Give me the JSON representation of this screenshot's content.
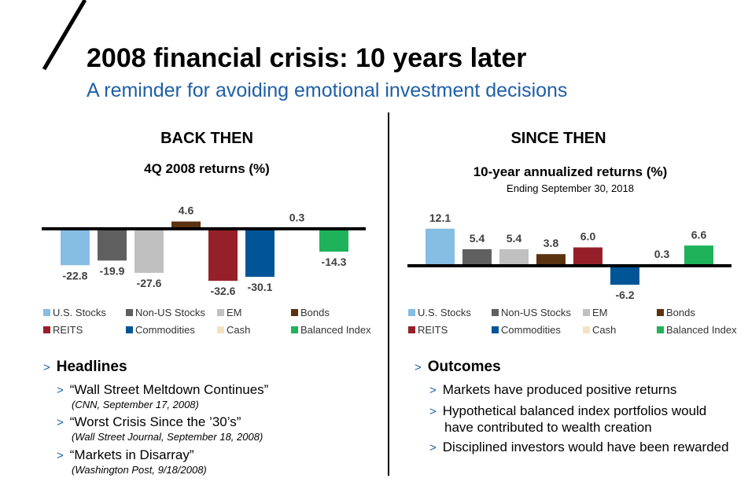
{
  "title": "2008 financial crisis: 10 years later",
  "subtitle": "A reminder for avoiding emotional investment decisions",
  "left": {
    "heading": "BACK THEN",
    "chart_title": "4Q 2008 returns (%)"
  },
  "right": {
    "heading": "SINCE THEN",
    "chart_title": "10-year annualized returns (%)",
    "chart_note": "Ending September 30, 2018"
  },
  "chart_data": [
    {
      "type": "bar",
      "title": "4Q 2008 returns (%)",
      "categories": [
        "U.S. Stocks",
        "Non-US Stocks",
        "EM",
        "Bonds",
        "REITS",
        "Commodities",
        "Cash",
        "Balanced Index"
      ],
      "values": [
        -22.8,
        -19.9,
        -27.6,
        4.6,
        -32.6,
        -30.1,
        0.3,
        -14.3
      ],
      "labels": [
        "-22.8",
        "-19.9",
        "-27.6",
        "4.6",
        "-32.6",
        "-30.1",
        "0.3",
        "-14.3"
      ],
      "legend": "bottom",
      "grid": false
    },
    {
      "type": "bar",
      "title": "10-year annualized returns (%)",
      "subtitle": "Ending September 30, 2018",
      "categories": [
        "U.S. Stocks",
        "Non-US Stocks",
        "EM",
        "Bonds",
        "REITS",
        "Commodities",
        "Cash",
        "Balanced Index"
      ],
      "values": [
        12.1,
        5.4,
        5.4,
        3.8,
        6.0,
        -6.2,
        0.3,
        6.6
      ],
      "labels": [
        "12.1",
        "5.4",
        "5.4",
        "3.8",
        "6.0",
        "-6.2",
        "0.3",
        "6.6"
      ],
      "legend": "bottom",
      "grid": false
    }
  ],
  "colors": [
    "#85bde3",
    "#606060",
    "#c0c0c0",
    "#5c3310",
    "#96202a",
    "#005596",
    "#f5e2c0",
    "#1fb25a"
  ],
  "headlines": {
    "title": "Headlines",
    "items": [
      {
        "text": "“Wall Street Meltdown Continues”",
        "source": "(CNN, September 17, 2008)"
      },
      {
        "text": "“Worst Crisis Since the ’30’s”",
        "source": "(Wall Street Journal, September 18, 2008)"
      },
      {
        "text": "“Markets in Disarray”",
        "source": "(Washington Post, 9/18/2008)"
      }
    ]
  },
  "outcomes": {
    "title": "Outcomes",
    "items": [
      "Markets have produced positive returns",
      "Hypothetical balanced index portfolios would have contributed to wealth creation",
      "Disciplined investors would have been rewarded"
    ]
  },
  "caret": ">"
}
